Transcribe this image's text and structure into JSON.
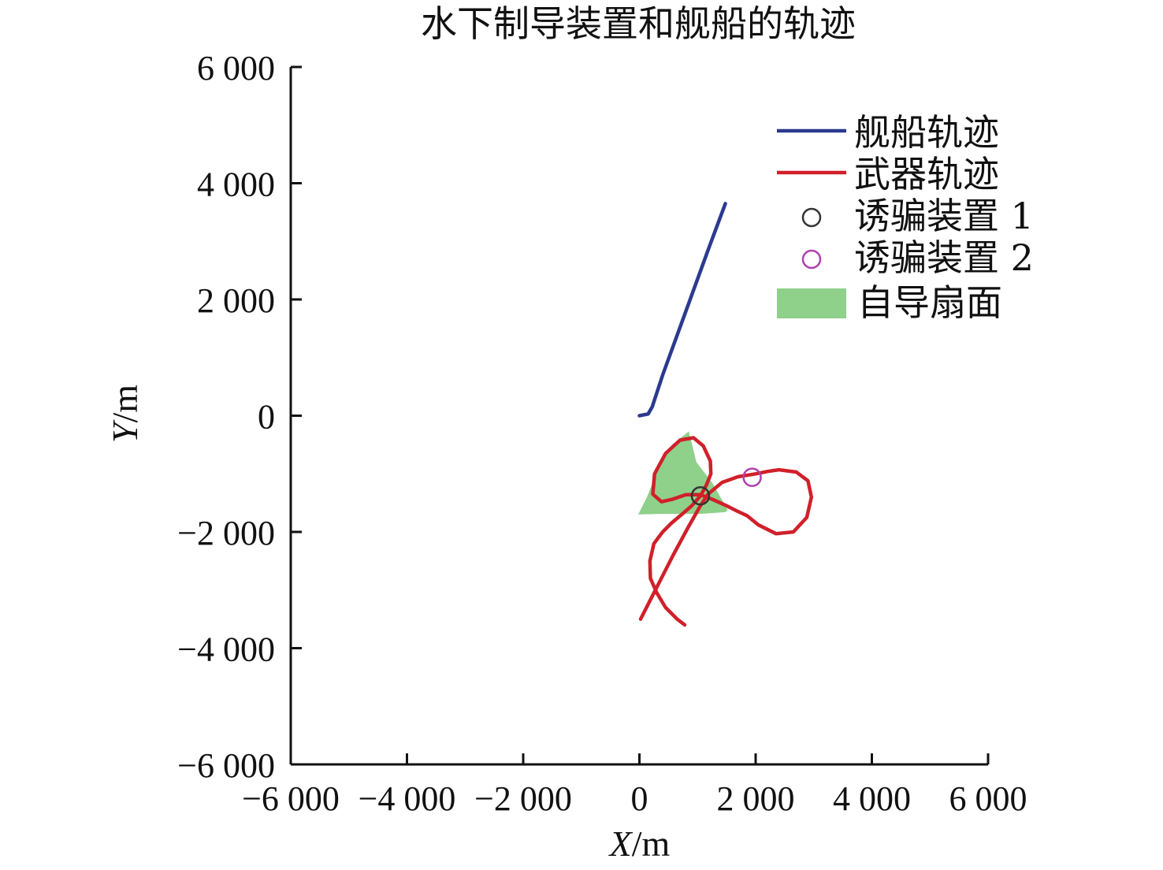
{
  "chart_data": {
    "type": "line",
    "title": "水下制导装置和舰船的轨迹",
    "xlabel_var": "X",
    "xlabel_unit": "/m",
    "ylabel_var": "Y",
    "ylabel_unit": "/m",
    "xlim": [
      -6000,
      6000
    ],
    "ylim": [
      -6000,
      6000
    ],
    "x_ticks": [
      {
        "v": -6000,
        "label": "−6 000"
      },
      {
        "v": -4000,
        "label": "−4 000"
      },
      {
        "v": -2000,
        "label": "−2 000"
      },
      {
        "v": 0,
        "label": "0"
      },
      {
        "v": 2000,
        "label": "2 000"
      },
      {
        "v": 4000,
        "label": "4 000"
      },
      {
        "v": 6000,
        "label": "6 000"
      }
    ],
    "y_ticks": [
      {
        "v": 6000,
        "label": "6 000"
      },
      {
        "v": 4000,
        "label": "4 000"
      },
      {
        "v": 2000,
        "label": "2 000"
      },
      {
        "v": 0,
        "label": "0"
      },
      {
        "v": -2000,
        "label": "−2 000"
      },
      {
        "v": -4000,
        "label": "−4 000"
      },
      {
        "v": -6000,
        "label": "−6 000"
      }
    ],
    "grid": false,
    "legend_position": "top-right",
    "colors": {
      "ship": "#2b3a8f",
      "weapon": "#d0202a",
      "decoy1": "#333333",
      "decoy2": "#b040b0",
      "sector": "#8fd08a"
    },
    "series": [
      {
        "name": "舰船轨迹",
        "kind": "line",
        "x": [
          0,
          150,
          220,
          400,
          800,
          1200,
          1480
        ],
        "y": [
          0,
          30,
          150,
          700,
          1800,
          2900,
          3650
        ]
      },
      {
        "name": "武器轨迹",
        "kind": "line",
        "x": [
          20,
          300,
          580,
          850,
          1050,
          1180,
          1420,
          1700,
          2000,
          2200,
          2400,
          2700,
          2900,
          2960,
          2880,
          2650,
          2350,
          2050,
          1850,
          1680,
          1500,
          1280,
          1050,
          800,
          560,
          380,
          230,
          260,
          450,
          700,
          930,
          1100,
          1220,
          1230,
          1150,
          1050,
          900,
          750,
          550,
          400,
          250,
          180,
          190,
          300,
          450,
          650,
          780
        ],
        "y": [
          -3500,
          -2950,
          -2400,
          -1900,
          -1550,
          -1350,
          -1150,
          -1050,
          -1000,
          -960,
          -930,
          -970,
          -1120,
          -1400,
          -1750,
          -2000,
          -2030,
          -1880,
          -1720,
          -1640,
          -1550,
          -1450,
          -1360,
          -1360,
          -1440,
          -1480,
          -1350,
          -1000,
          -650,
          -420,
          -380,
          -520,
          -780,
          -1000,
          -1200,
          -1380,
          -1550,
          -1680,
          -1850,
          -2000,
          -2200,
          -2500,
          -2800,
          -3050,
          -3300,
          -3500,
          -3600
        ]
      },
      {
        "name": "诱骗装置 1",
        "kind": "marker",
        "x": [
          1050
        ],
        "y": [
          -1380
        ]
      },
      {
        "name": "诱骗装置 2",
        "kind": "marker",
        "x": [
          1940
        ],
        "y": [
          -1060
        ]
      },
      {
        "name": "自导扇面",
        "kind": "area",
        "x": [
          -20,
          130,
          330,
          560,
          850,
          980,
          1250,
          1520,
          1480,
          1050,
          700,
          350,
          -20
        ],
        "y": [
          -1700,
          -1400,
          -900,
          -500,
          -270,
          -800,
          -1150,
          -1620,
          -1660,
          -1690,
          -1690,
          -1690,
          -1700
        ]
      }
    ]
  }
}
